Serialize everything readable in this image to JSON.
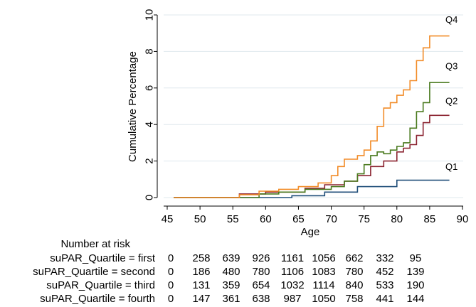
{
  "chart_data": {
    "type": "line",
    "step": true,
    "ylabel": "Cumulative Percentage",
    "xlabel": "Age",
    "xlim": [
      45,
      90
    ],
    "ylim": [
      0,
      10
    ],
    "xticks": [
      45,
      50,
      55,
      60,
      65,
      70,
      75,
      80,
      85,
      90
    ],
    "yticks": [
      0,
      2,
      4,
      6,
      8,
      10
    ],
    "grid": "horizontal",
    "colors": {
      "Q1": "#1f4e79",
      "Q2": "#8b2330",
      "Q3": "#4a7a1e",
      "Q4": "#f28c28"
    },
    "series": [
      {
        "name": "Q1",
        "color": "#1f4e79",
        "points": [
          [
            46,
            0
          ],
          [
            64,
            0
          ],
          [
            64,
            0.1
          ],
          [
            69,
            0.1
          ],
          [
            69,
            0.3
          ],
          [
            74,
            0.3
          ],
          [
            74,
            0.6
          ],
          [
            80,
            0.6
          ],
          [
            80,
            0.95
          ],
          [
            88,
            0.95
          ]
        ]
      },
      {
        "name": "Q2",
        "color": "#8b2330",
        "points": [
          [
            46,
            0
          ],
          [
            56,
            0
          ],
          [
            56,
            0.2
          ],
          [
            60,
            0.2
          ],
          [
            60,
            0.3
          ],
          [
            66,
            0.3
          ],
          [
            66,
            0.5
          ],
          [
            69,
            0.5
          ],
          [
            69,
            0.7
          ],
          [
            72,
            0.7
          ],
          [
            72,
            0.9
          ],
          [
            74,
            0.9
          ],
          [
            74,
            1.2
          ],
          [
            76,
            1.2
          ],
          [
            76,
            1.7
          ],
          [
            78,
            1.7
          ],
          [
            78,
            2.0
          ],
          [
            80,
            2.0
          ],
          [
            80,
            2.5
          ],
          [
            81,
            2.5
          ],
          [
            81,
            2.7
          ],
          [
            82,
            2.7
          ],
          [
            82,
            2.9
          ],
          [
            83,
            2.9
          ],
          [
            83,
            3.4
          ],
          [
            84,
            3.4
          ],
          [
            84,
            4.1
          ],
          [
            85,
            4.1
          ],
          [
            85,
            4.5
          ],
          [
            88,
            4.5
          ]
        ]
      },
      {
        "name": "Q3",
        "color": "#4a7a1e",
        "points": [
          [
            46,
            0
          ],
          [
            59,
            0
          ],
          [
            59,
            0.2
          ],
          [
            62,
            0.2
          ],
          [
            62,
            0.3
          ],
          [
            66,
            0.3
          ],
          [
            66,
            0.45
          ],
          [
            70,
            0.45
          ],
          [
            70,
            0.6
          ],
          [
            72,
            0.6
          ],
          [
            72,
            0.9
          ],
          [
            74,
            0.9
          ],
          [
            74,
            1.3
          ],
          [
            75,
            1.3
          ],
          [
            75,
            1.8
          ],
          [
            76,
            1.8
          ],
          [
            76,
            2.3
          ],
          [
            77,
            2.3
          ],
          [
            77,
            2.5
          ],
          [
            78,
            2.5
          ],
          [
            78,
            2.4
          ],
          [
            79,
            2.4
          ],
          [
            79,
            2.6
          ],
          [
            80,
            2.6
          ],
          [
            80,
            2.8
          ],
          [
            81,
            2.8
          ],
          [
            81,
            3.0
          ],
          [
            82,
            3.0
          ],
          [
            82,
            3.8
          ],
          [
            83,
            3.8
          ],
          [
            83,
            4.7
          ],
          [
            84,
            4.7
          ],
          [
            84,
            5.2
          ],
          [
            85,
            5.2
          ],
          [
            85,
            6.3
          ],
          [
            88,
            6.3
          ]
        ]
      },
      {
        "name": "Q4",
        "color": "#f28c28",
        "points": [
          [
            46,
            0
          ],
          [
            56,
            0
          ],
          [
            56,
            0.15
          ],
          [
            59,
            0.15
          ],
          [
            59,
            0.35
          ],
          [
            62,
            0.35
          ],
          [
            62,
            0.45
          ],
          [
            65,
            0.45
          ],
          [
            65,
            0.6
          ],
          [
            68,
            0.6
          ],
          [
            68,
            0.8
          ],
          [
            70,
            0.8
          ],
          [
            70,
            1.2
          ],
          [
            71,
            1.2
          ],
          [
            71,
            1.7
          ],
          [
            72,
            1.7
          ],
          [
            72,
            2.1
          ],
          [
            74,
            2.1
          ],
          [
            74,
            2.3
          ],
          [
            75,
            2.3
          ],
          [
            75,
            2.6
          ],
          [
            76,
            2.6
          ],
          [
            76,
            3.1
          ],
          [
            77,
            3.1
          ],
          [
            77,
            3.9
          ],
          [
            78,
            3.9
          ],
          [
            78,
            4.9
          ],
          [
            79,
            4.9
          ],
          [
            79,
            5.2
          ],
          [
            80,
            5.2
          ],
          [
            80,
            5.6
          ],
          [
            81,
            5.6
          ],
          [
            81,
            5.9
          ],
          [
            82,
            5.9
          ],
          [
            82,
            6.4
          ],
          [
            83,
            6.4
          ],
          [
            83,
            7.5
          ],
          [
            84,
            7.5
          ],
          [
            84,
            8.2
          ],
          [
            85,
            8.2
          ],
          [
            85,
            8.85
          ],
          [
            88,
            8.85
          ]
        ]
      }
    ]
  },
  "risk_table": {
    "title": "Number at risk",
    "rows": [
      {
        "label": "suPAR_Quartile = first",
        "values": [
          "0",
          "258",
          "639",
          "926",
          "1161",
          "1056",
          "662",
          "332",
          "95"
        ]
      },
      {
        "label": "suPAR_Quartile = second",
        "values": [
          "0",
          "186",
          "480",
          "780",
          "1106",
          "1083",
          "780",
          "452",
          "139"
        ]
      },
      {
        "label": "suPAR_Quartile = third",
        "values": [
          "0",
          "131",
          "359",
          "654",
          "1032",
          "1114",
          "840",
          "533",
          "190"
        ]
      },
      {
        "label": "suPAR_Quartile = fourth",
        "values": [
          "0",
          "147",
          "361",
          "638",
          "987",
          "1050",
          "758",
          "441",
          "144"
        ]
      }
    ]
  }
}
